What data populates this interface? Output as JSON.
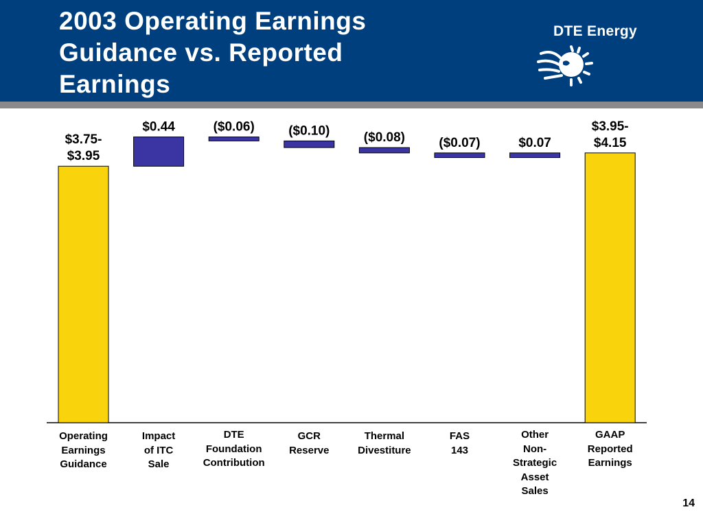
{
  "slide": {
    "title_lines": [
      "2003 Operating Earnings",
      "Guidance vs. Reported",
      "Earnings"
    ],
    "logo_text": "DTE Energy",
    "page_number": "14"
  },
  "colors": {
    "header_bg": "#003f7d",
    "header_rule": "#8a8a8a",
    "endpoint_bar": "#f9d40c",
    "step_bar": "#3b35a3",
    "bar_outline": "#000000"
  },
  "chart_data": {
    "type": "bar",
    "subtype": "waterfall",
    "categories": [
      "Operating\nEarnings\nGuidance",
      "Impact\nof ITC\nSale",
      "DTE\nFoundation\nContribution",
      "GCR\nReserve",
      "Thermal\nDivestiture",
      "FAS\n143",
      "Other\nNon-\nStrategic\nAsset\nSales",
      "GAAP\nReported\nEarnings"
    ],
    "values": [
      3.85,
      0.44,
      -0.06,
      -0.1,
      -0.08,
      -0.07,
      0.07,
      4.05
    ],
    "bar_kinds": [
      "total",
      "delta",
      "delta",
      "delta",
      "delta",
      "delta",
      "delta",
      "total"
    ],
    "data_labels": [
      "$3.75-\n$3.95",
      "$0.44",
      "($0.06)",
      "($0.10)",
      "($0.08)",
      "($0.07)",
      "$0.07",
      "$3.95-\n$4.15"
    ],
    "ylim": [
      0,
      4.45
    ],
    "grid": false,
    "legend": "none",
    "title": "",
    "xlabel": "",
    "ylabel": ""
  }
}
